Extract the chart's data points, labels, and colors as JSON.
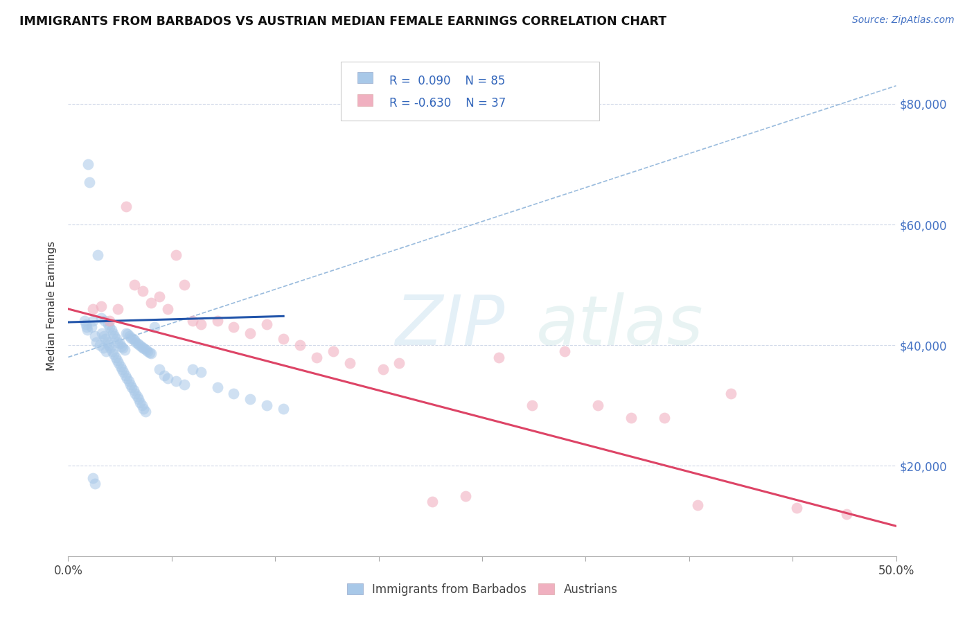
{
  "title": "IMMIGRANTS FROM BARBADOS VS AUSTRIAN MEDIAN FEMALE EARNINGS CORRELATION CHART",
  "source": "Source: ZipAtlas.com",
  "ylabel": "Median Female Earnings",
  "yticks": [
    20000,
    40000,
    60000,
    80000
  ],
  "ytick_labels": [
    "$20,000",
    "$40,000",
    "$60,000",
    "$80,000"
  ],
  "xlim": [
    0.0,
    50.0
  ],
  "ylim": [
    5000,
    88000
  ],
  "blue_color": "#a8c8e8",
  "pink_color": "#f0b0c0",
  "blue_line_color": "#2255aa",
  "pink_line_color": "#dd4466",
  "dashed_line_color": "#99bbdd",
  "blue_scatter_x": [
    1.2,
    1.3,
    1.4,
    1.5,
    1.6,
    1.7,
    1.8,
    1.9,
    2.0,
    2.1,
    2.2,
    2.3,
    2.4,
    2.5,
    2.6,
    2.7,
    2.8,
    2.9,
    3.0,
    3.1,
    3.2,
    3.3,
    3.4,
    3.5,
    3.6,
    3.7,
    3.8,
    3.9,
    4.0,
    4.1,
    4.2,
    4.3,
    4.4,
    4.5,
    4.6,
    4.7,
    4.8,
    4.9,
    5.0,
    5.2,
    5.5,
    5.8,
    6.0,
    6.5,
    7.0,
    7.5,
    8.0,
    9.0,
    10.0,
    11.0,
    12.0,
    13.0,
    1.0,
    1.05,
    1.1,
    1.15,
    2.05,
    2.15,
    2.25,
    2.35,
    2.45,
    2.55,
    2.65,
    2.75,
    2.85,
    2.95,
    3.05,
    3.15,
    3.25,
    3.35,
    3.45,
    3.55,
    3.65,
    3.75,
    3.85,
    3.95,
    4.05,
    4.15,
    4.25,
    4.35,
    4.45,
    4.55,
    4.65,
    1.5,
    1.6
  ],
  "blue_scatter_y": [
    70000,
    67000,
    43000,
    44000,
    41500,
    40500,
    55000,
    40000,
    44500,
    39500,
    44000,
    39000,
    43500,
    43000,
    42500,
    42000,
    41500,
    41000,
    40500,
    40200,
    39800,
    39500,
    39200,
    42000,
    41800,
    41500,
    41200,
    41000,
    40800,
    40500,
    40200,
    40000,
    39800,
    39600,
    39400,
    39200,
    39000,
    38800,
    38600,
    43000,
    36000,
    35000,
    34500,
    34000,
    33500,
    36000,
    35500,
    33000,
    32000,
    31000,
    30000,
    29500,
    44000,
    43500,
    43000,
    42500,
    42000,
    41500,
    41000,
    40500,
    40000,
    39500,
    39000,
    38500,
    38000,
    37500,
    37000,
    36500,
    36000,
    35500,
    35000,
    34500,
    34000,
    33500,
    33000,
    32500,
    32000,
    31500,
    31000,
    30500,
    30000,
    29500,
    29000,
    18000,
    17000
  ],
  "pink_scatter_x": [
    1.5,
    2.0,
    2.5,
    3.0,
    3.5,
    4.0,
    4.5,
    5.0,
    5.5,
    6.0,
    6.5,
    7.0,
    7.5,
    8.0,
    9.0,
    10.0,
    11.0,
    12.0,
    13.0,
    14.0,
    15.0,
    16.0,
    17.0,
    19.0,
    20.0,
    22.0,
    24.0,
    26.0,
    28.0,
    30.0,
    32.0,
    34.0,
    36.0,
    38.0,
    40.0,
    44.0,
    47.0
  ],
  "pink_scatter_y": [
    46000,
    46500,
    44000,
    46000,
    63000,
    50000,
    49000,
    47000,
    48000,
    46000,
    55000,
    50000,
    44000,
    43500,
    44000,
    43000,
    42000,
    43500,
    41000,
    40000,
    38000,
    39000,
    37000,
    36000,
    37000,
    14000,
    15000,
    38000,
    30000,
    39000,
    30000,
    28000,
    28000,
    13500,
    32000,
    13000,
    12000
  ],
  "blue_trend_x": [
    0.0,
    13.0
  ],
  "blue_trend_y": [
    43800,
    44800
  ],
  "pink_trend_x": [
    0.0,
    50.0
  ],
  "pink_trend_y": [
    46000,
    10000
  ],
  "dashed_trend_x": [
    0.0,
    50.0
  ],
  "dashed_trend_y": [
    38000,
    83000
  ],
  "xtick_positions": [
    0,
    6.25,
    12.5,
    18.75,
    25,
    31.25,
    37.5,
    43.75,
    50
  ],
  "xtick_label_show": [
    0,
    50
  ]
}
